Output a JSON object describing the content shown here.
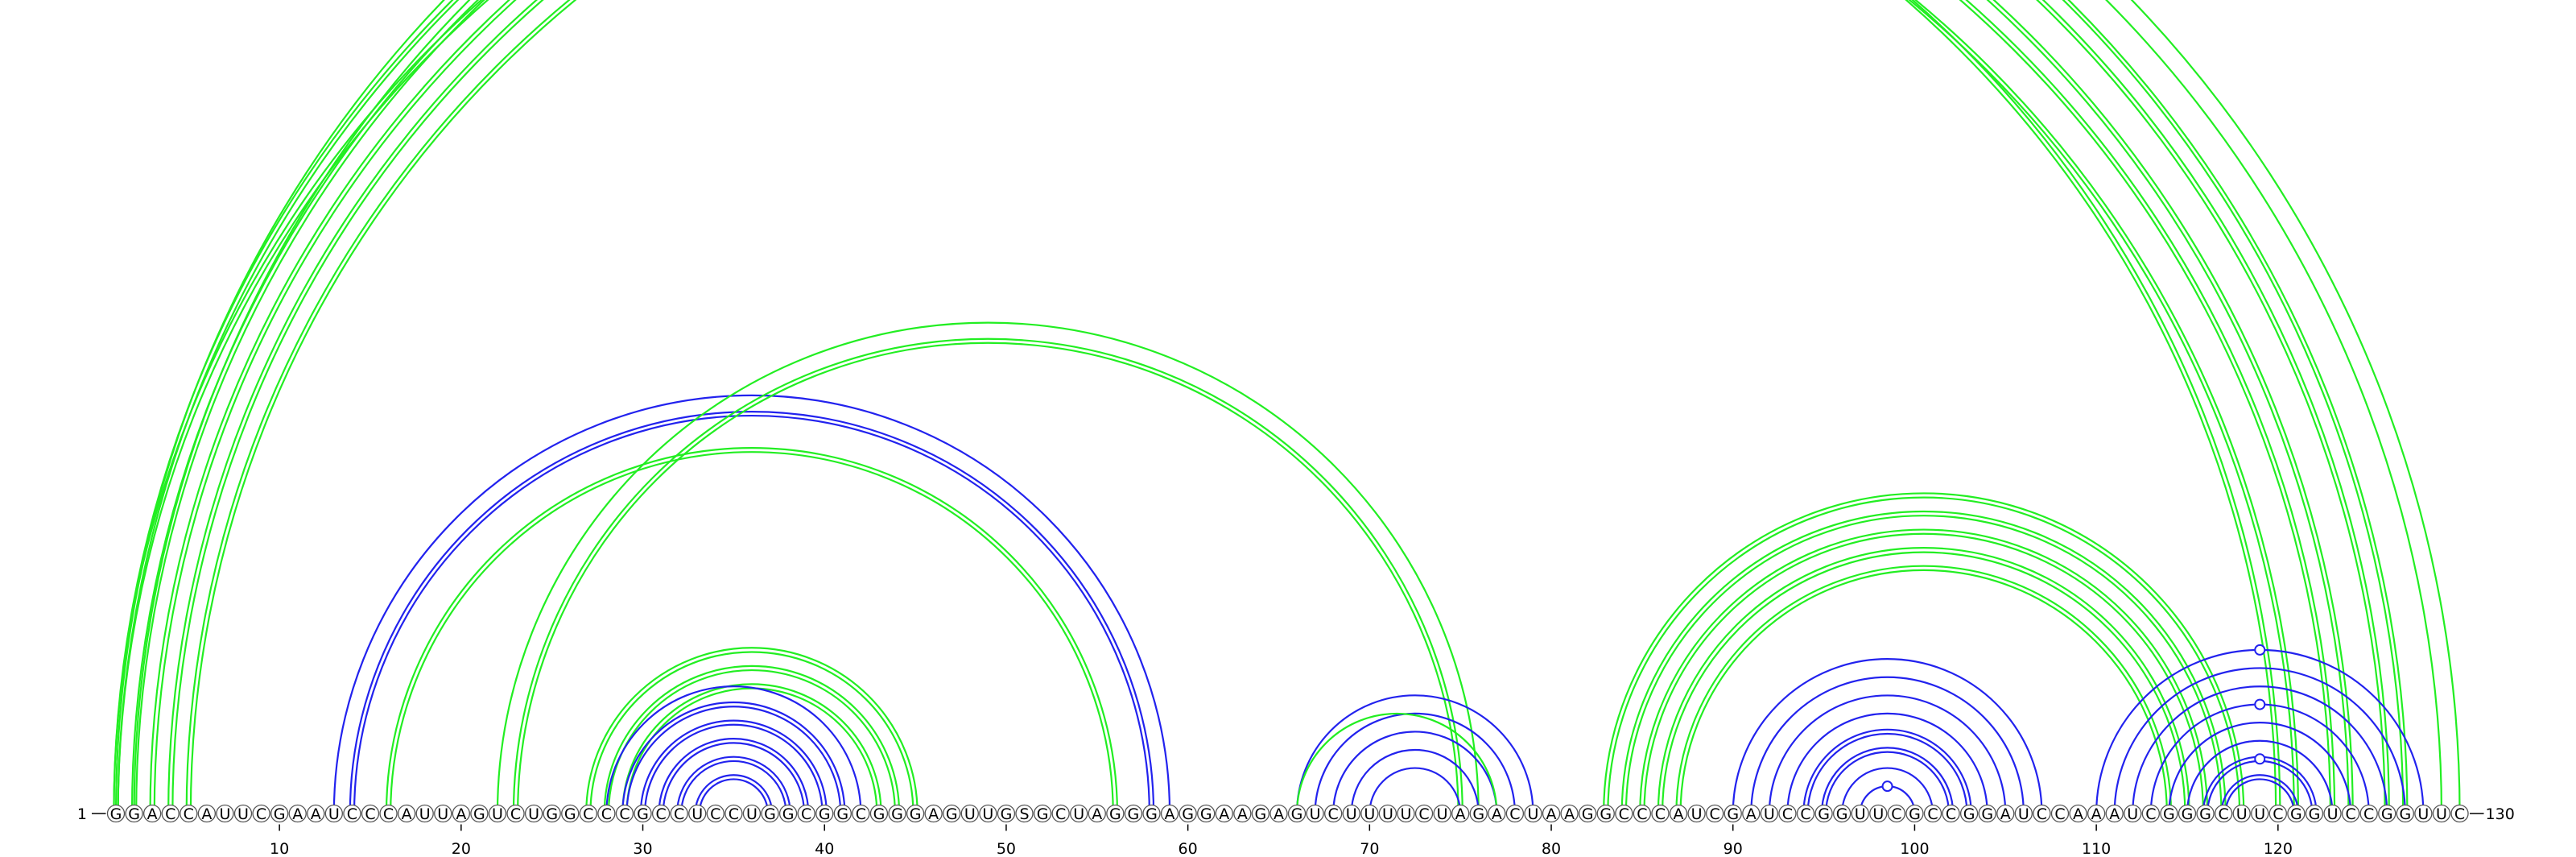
{
  "sequence": {
    "nucleotides": "GGACCAUUCGAAUCCCAUUAGUCUGGCCCGCCUCCUGGCGGCGGGAGUUGSGCUAGGGAGGAAGAGUCUUUUCUAGACUAAGGCCCAUCGAUCCGGUUCGCCGGAUCCAAAUCGGGCUUCGGUCCGGUUC",
    "start_label": "1",
    "end_label": "130",
    "tick_labels": [
      "10",
      "20",
      "30",
      "40",
      "50",
      "60",
      "70",
      "80",
      "90",
      "100",
      "110",
      "120"
    ]
  },
  "colors": {
    "green": "#22ee22",
    "blue": "#2222ee",
    "nt_outline": "#555555",
    "nt_fill": "#ffffff"
  },
  "arc_groups": [
    {
      "color": "green",
      "double": true,
      "pairs": [
        [
          1,
          127
        ],
        [
          2,
          126
        ],
        [
          3,
          124
        ],
        [
          4,
          123
        ],
        [
          5,
          121
        ]
      ]
    },
    {
      "color": "green",
      "double": true,
      "pairs": [
        [
          1,
          120
        ]
      ]
    },
    {
      "color": "green",
      "double": false,
      "pairs": [
        [
          1,
          130
        ],
        [
          2,
          129
        ]
      ]
    },
    {
      "color": "blue",
      "double": false,
      "pairs": [
        [
          13,
          59
        ]
      ]
    },
    {
      "color": "blue",
      "double": true,
      "pairs": [
        [
          14,
          58
        ]
      ]
    },
    {
      "color": "green",
      "double": true,
      "pairs": [
        [
          16,
          56
        ]
      ]
    },
    {
      "color": "green",
      "double": false,
      "pairs": [
        [
          22,
          76
        ]
      ]
    },
    {
      "color": "green",
      "double": true,
      "pairs": [
        [
          23,
          75
        ]
      ]
    },
    {
      "color": "green",
      "double": true,
      "pairs": [
        [
          27,
          45
        ],
        [
          28,
          44
        ],
        [
          29,
          43
        ]
      ]
    },
    {
      "color": "blue",
      "double": false,
      "pairs": [
        [
          28,
          42
        ]
      ]
    },
    {
      "color": "blue",
      "double": true,
      "pairs": [
        [
          29,
          41
        ],
        [
          30,
          40
        ],
        [
          31,
          39
        ],
        [
          32,
          38
        ],
        [
          33,
          37
        ]
      ]
    },
    {
      "color": "blue",
      "double": false,
      "pairs": [
        [
          66,
          79
        ],
        [
          67,
          78
        ],
        [
          68,
          77
        ],
        [
          69,
          76
        ],
        [
          70,
          75
        ]
      ]
    },
    {
      "color": "green",
      "double": false,
      "pairs": [
        [
          66,
          77
        ]
      ]
    },
    {
      "color": "green",
      "double": true,
      "pairs": [
        [
          83,
          118
        ],
        [
          84,
          117
        ],
        [
          85,
          116
        ],
        [
          86,
          115
        ],
        [
          87,
          114
        ]
      ]
    },
    {
      "color": "blue",
      "double": false,
      "pairs": [
        [
          90,
          107
        ],
        [
          91,
          106
        ],
        [
          92,
          105
        ],
        [
          93,
          104
        ]
      ]
    },
    {
      "color": "blue",
      "double": true,
      "pairs": [
        [
          94,
          103
        ],
        [
          95,
          102
        ]
      ]
    },
    {
      "color": "blue",
      "double": false,
      "pairs": [
        [
          96,
          101
        ],
        [
          97,
          100
        ]
      ]
    },
    {
      "color": "blue",
      "double": false,
      "pairs": [
        [
          110,
          128
        ],
        [
          111,
          127
        ],
        [
          112,
          126
        ],
        [
          113,
          125
        ],
        [
          114,
          124
        ],
        [
          115,
          123
        ]
      ]
    },
    {
      "color": "blue",
      "double": true,
      "pairs": [
        [
          116,
          122
        ],
        [
          117,
          121
        ]
      ]
    }
  ],
  "markers": [
    {
      "color": "green",
      "pair": [
        1,
        130
      ]
    },
    {
      "color": "blue",
      "pair": [
        110,
        128
      ]
    },
    {
      "color": "blue",
      "pair": [
        113,
        125
      ]
    },
    {
      "color": "blue",
      "pair": [
        116,
        122
      ]
    },
    {
      "color": "blue",
      "pair": [
        97,
        100
      ]
    }
  ]
}
